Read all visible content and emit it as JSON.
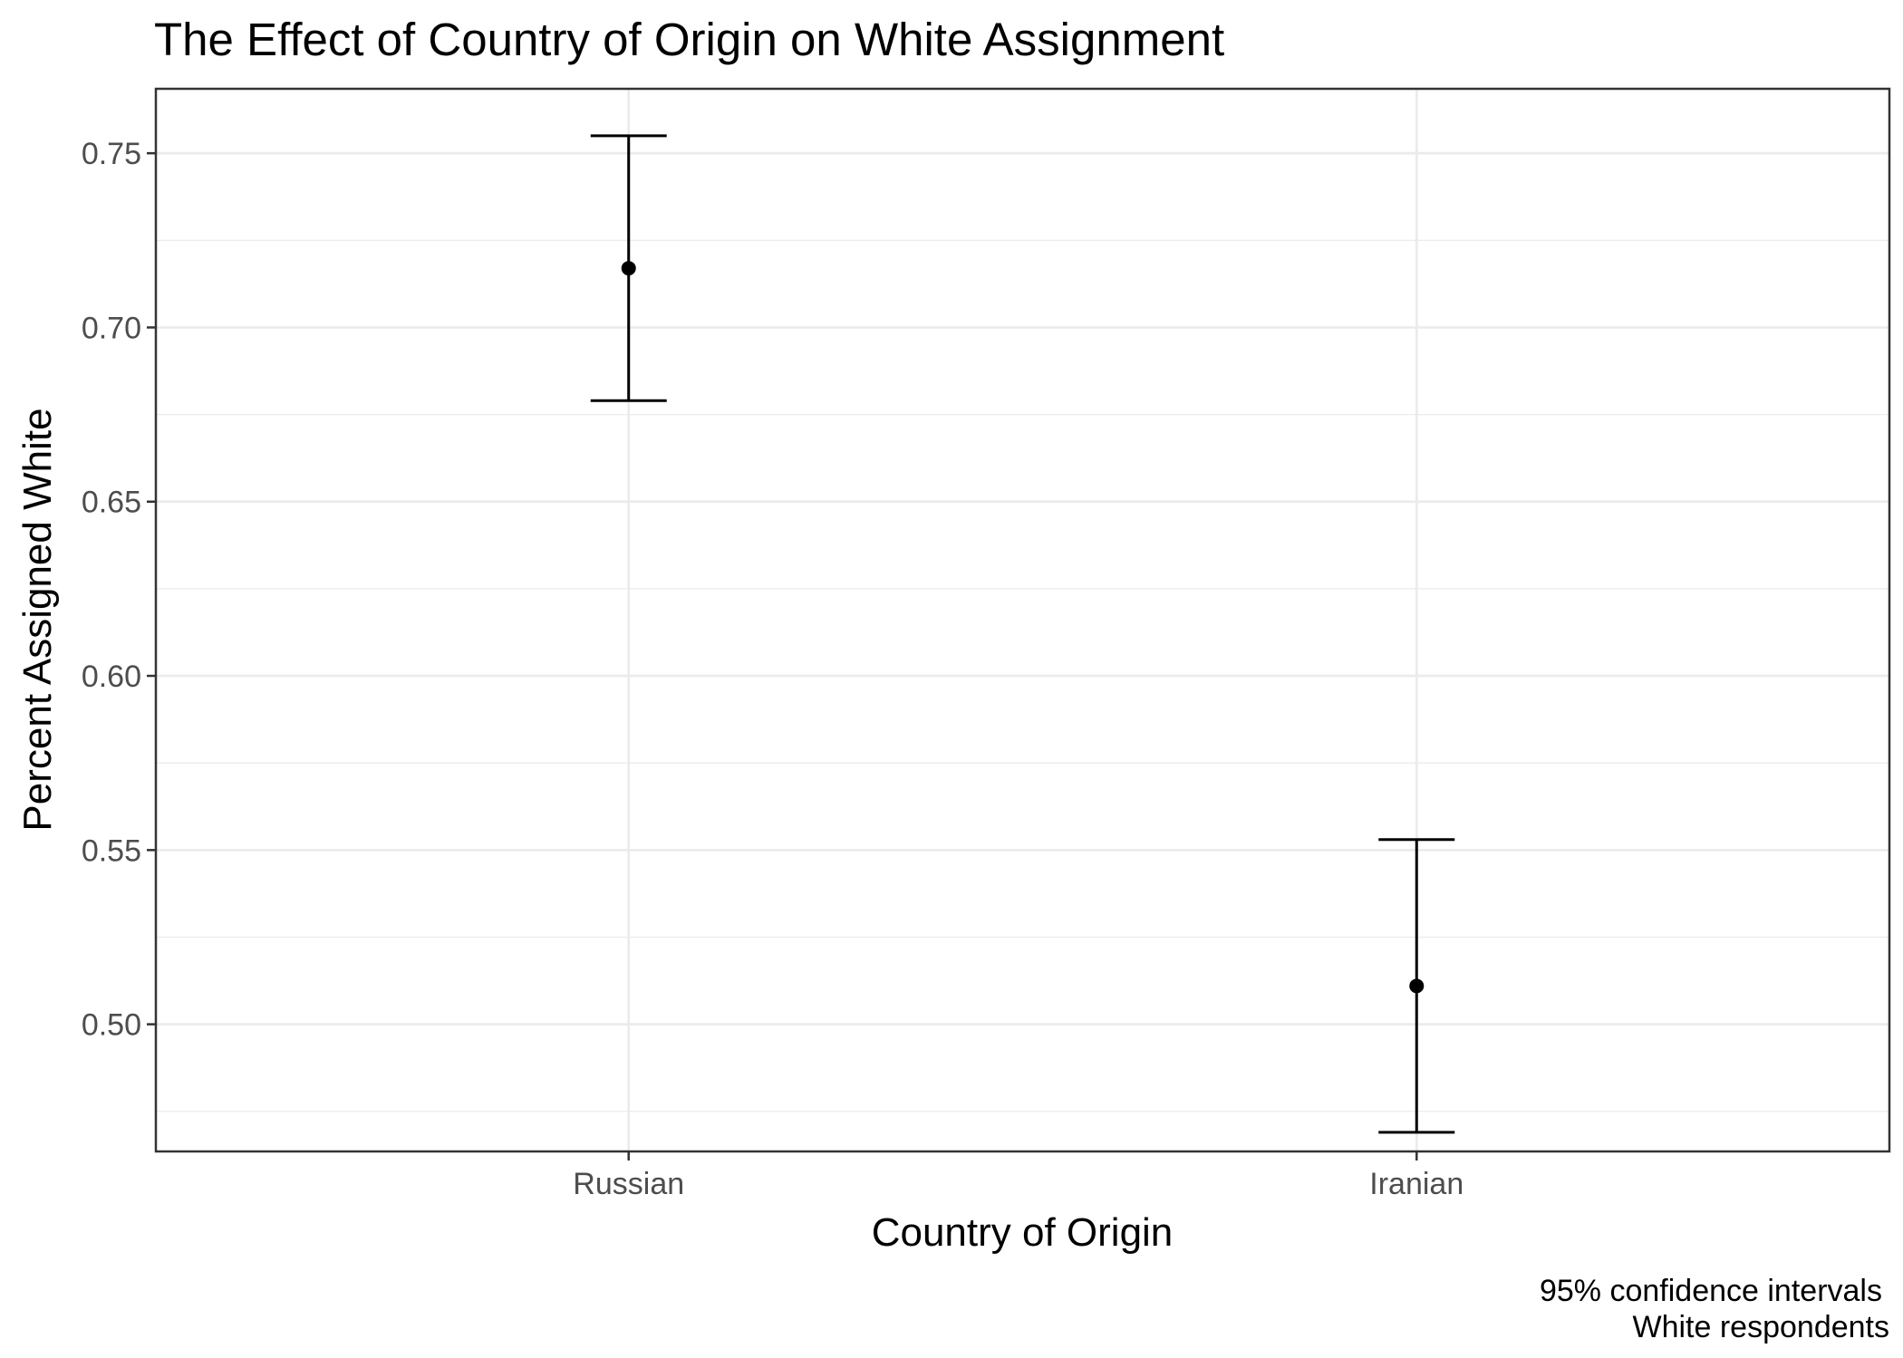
{
  "chart_data": {
    "type": "scatter",
    "title": "The Effect of Country of Origin on White Assignment",
    "xlabel": "Country of Origin",
    "ylabel": "Percent Assigned White",
    "categories": [
      "Russian",
      "Iranian"
    ],
    "estimates": [
      0.717,
      0.511
    ],
    "ci_lower": [
      0.679,
      0.469
    ],
    "ci_upper": [
      0.755,
      0.553
    ],
    "ylim": [
      0.4635,
      0.7685
    ],
    "y_ticks": [
      0.5,
      0.55,
      0.6,
      0.65,
      0.7,
      0.75
    ],
    "y_tick_labels": [
      "0.50",
      "0.55",
      "0.60",
      "0.65",
      "0.70",
      "0.75"
    ],
    "caption": [
      "95% confidence intervals",
      "White respondents"
    ],
    "grid": true,
    "legend": "none"
  }
}
